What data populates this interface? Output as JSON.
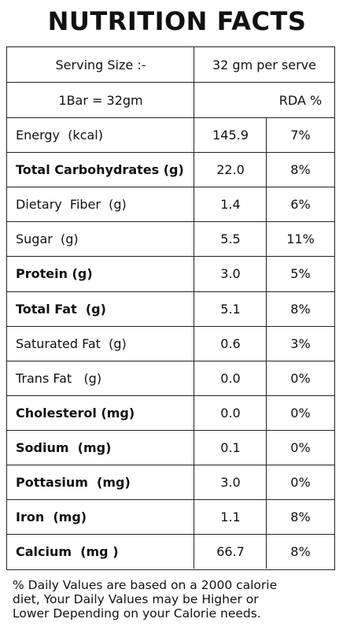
{
  "title": "NUTRITION FACTS",
  "serving": {
    "label": "Serving Size :-",
    "value": "32 gm per serve"
  },
  "subheader": {
    "label": "1Bar = 32gm",
    "value": "",
    "rda": "RDA %"
  },
  "nutrients": [
    {
      "name": "Energy  (kcal)",
      "value": "145.9",
      "rda": "7%",
      "bold": false
    },
    {
      "name": "Total Carbohydrates (g)",
      "value": "22.0",
      "rda": "8%",
      "bold": true
    },
    {
      "name": "Dietary  Fiber  (g)",
      "value": "1.4",
      "rda": "6%",
      "bold": false
    },
    {
      "name": "Sugar  (g)",
      "value": "5.5",
      "rda": "11%",
      "bold": false
    },
    {
      "name": "Protein (g)",
      "value": "3.0",
      "rda": "5%",
      "bold": true
    },
    {
      "name": "Total Fat  (g)",
      "value": "5.1",
      "rda": "8%",
      "bold": true
    },
    {
      "name": "Saturated Fat  (g)",
      "value": "0.6",
      "rda": "3%",
      "bold": false
    },
    {
      "name": "Trans Fat   (g)",
      "value": "0.0",
      "rda": "0%",
      "bold": false
    },
    {
      "name": "Cholesterol (mg)",
      "value": "0.0",
      "rda": "0%",
      "bold": true
    },
    {
      "name": "Sodium  (mg)",
      "value": "0.1",
      "rda": "0%",
      "bold": true
    },
    {
      "name": "Pottasium  (mg)",
      "value": "3.0",
      "rda": "0%",
      "bold": true
    },
    {
      "name": "Iron  (mg)",
      "value": "1.1",
      "rda": "8%",
      "bold": true
    },
    {
      "name": "Calcium  (mg )",
      "value": "66.7",
      "rda": "8%",
      "bold": true
    }
  ],
  "footer": {
    "line1": "% Daily Values are based on a 2000 calorie",
    "line2": "diet, Your Daily Values may be Higher or",
    "line3": "Lower Depending on your Calorie needs."
  }
}
